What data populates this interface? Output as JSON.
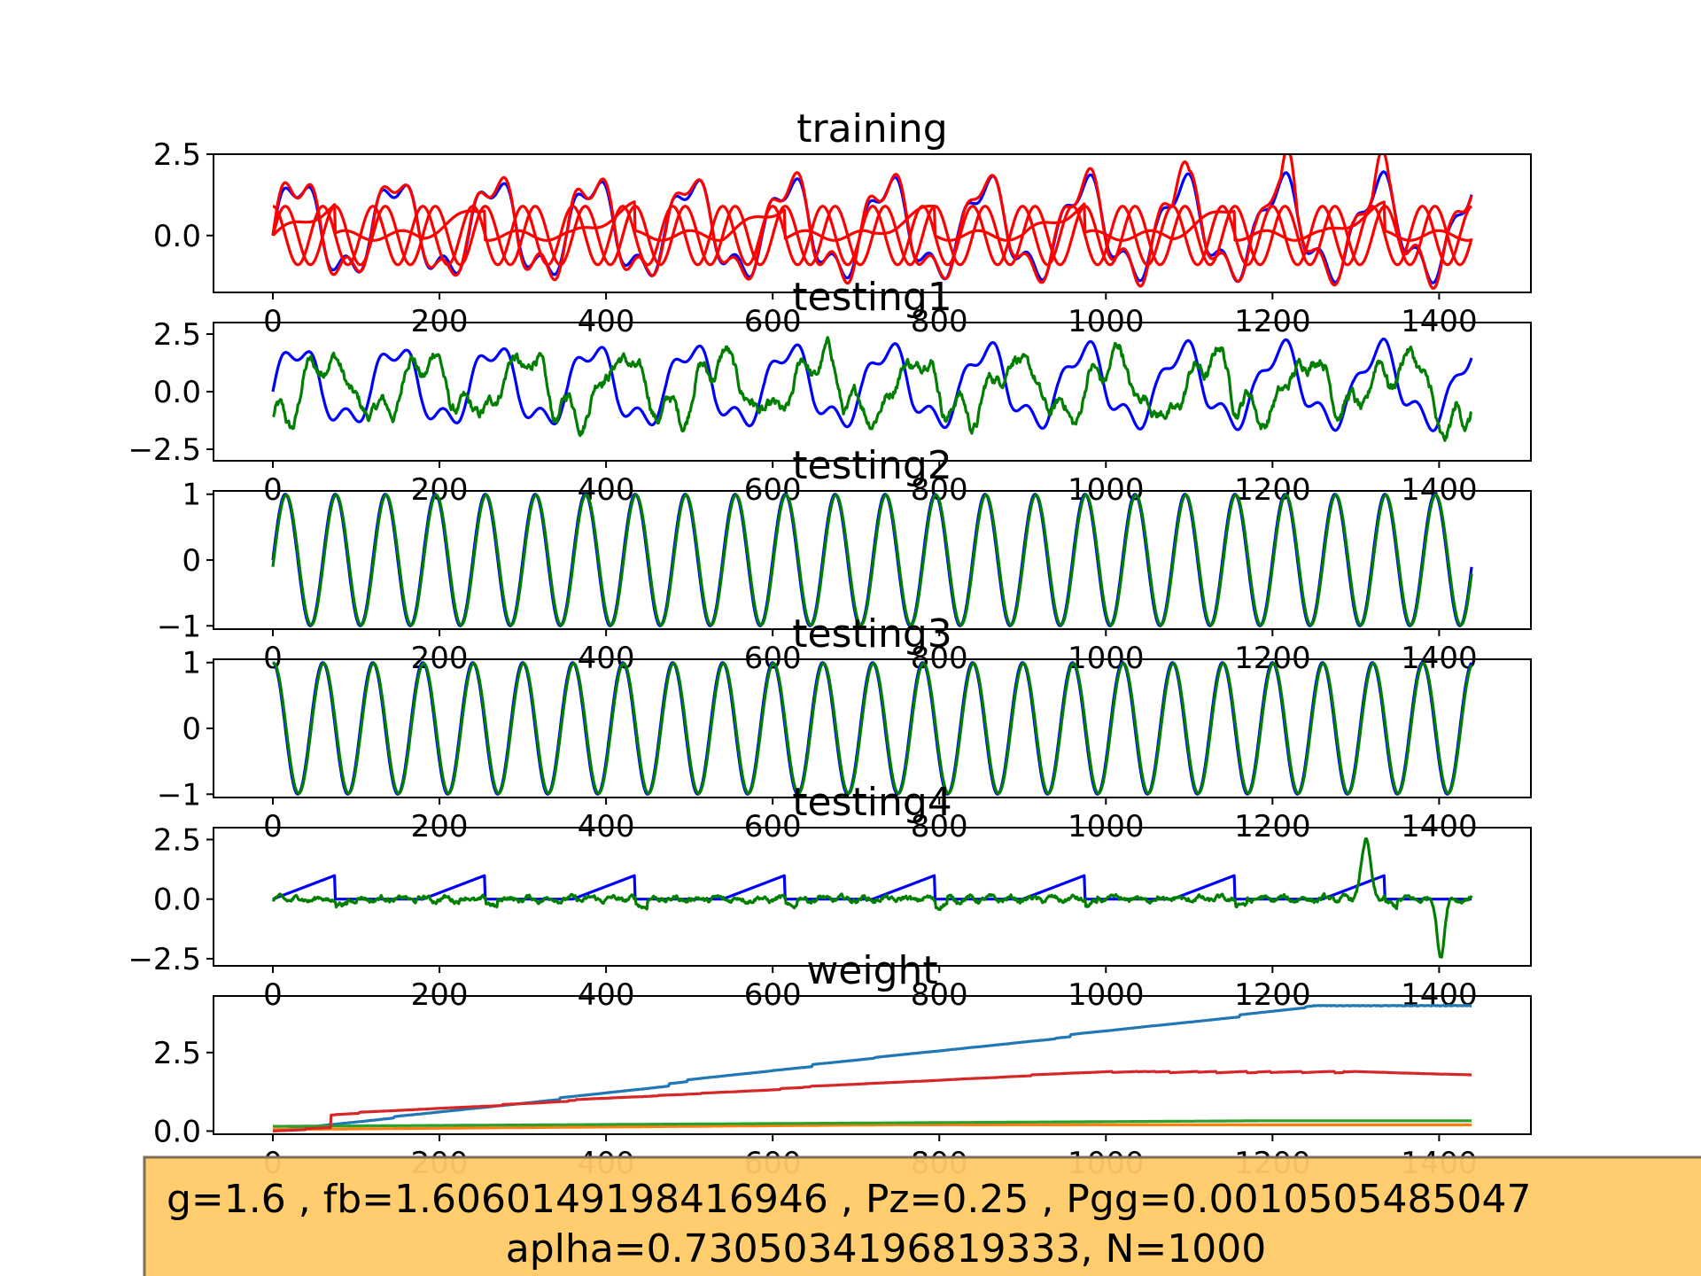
{
  "figure": {
    "caption_line1": "g=1.6 , fb=1.6060149198416946 , Pz=0.25 , Pgg=0.0010505485047",
    "caption_line2": "aplha=0.7305034196819333, N=1000",
    "caption_bg": "#ffc966",
    "caption_border": "#7f6f57"
  },
  "colors": {
    "target": "#0000ff",
    "train_out": "#ff0000",
    "test_out": "#007f00",
    "w1": "#1f77b4",
    "w2": "#ff7f0e",
    "w3": "#2ca02c",
    "w4": "#d62728"
  },
  "chart_data": [
    {
      "type": "line",
      "title": "training",
      "x_range": [
        0,
        1440
      ],
      "ylim": [
        -1.75,
        2.5
      ],
      "yticks": [
        "2.5",
        "0.0"
      ],
      "xticks": [
        "0",
        "200",
        "400",
        "600",
        "800",
        "1000",
        "1200",
        "1400"
      ],
      "series_desc": [
        "target (blue)",
        "outputs (red, 4 traces)"
      ],
      "signal": "sum of sines + sawtooth bursts",
      "y_approx_max": 2.3,
      "y_approx_min": -1.6
    },
    {
      "type": "line",
      "title": "testing1",
      "x_range": [
        0,
        1440
      ],
      "ylim": [
        -3.0,
        3.0
      ],
      "yticks": [
        "2.5",
        "0.0",
        "−2.5"
      ],
      "xticks": [
        "0",
        "200",
        "400",
        "600",
        "800",
        "1000",
        "1200",
        "1400"
      ],
      "series_desc": [
        "target (blue)",
        "output (green)"
      ],
      "y_approx_max": 2.7,
      "y_approx_min": -2.8
    },
    {
      "type": "line",
      "title": "testing2",
      "x_range": [
        0,
        1440
      ],
      "ylim": [
        -1.05,
        1.05
      ],
      "yticks": [
        "1",
        "0",
        "−1"
      ],
      "xticks": [
        "0",
        "200",
        "400",
        "600",
        "800",
        "1000",
        "1200",
        "1400"
      ],
      "series_desc": [
        "target sin (blue)",
        "output (green)"
      ],
      "period": 60
    },
    {
      "type": "line",
      "title": "testing3",
      "x_range": [
        0,
        1440
      ],
      "ylim": [
        -1.05,
        1.05
      ],
      "yticks": [
        "1",
        "0",
        "−1"
      ],
      "xticks": [
        "0",
        "200",
        "400",
        "600",
        "800",
        "1000",
        "1200",
        "1400"
      ],
      "series_desc": [
        "target cos (blue)",
        "output (green)"
      ],
      "period": 60
    },
    {
      "type": "line",
      "title": "testing4",
      "x_range": [
        0,
        1440
      ],
      "ylim": [
        -2.8,
        3.0
      ],
      "yticks": [
        "2.5",
        "0.0",
        "−2.5"
      ],
      "xticks": [
        "0",
        "200",
        "400",
        "600",
        "800",
        "1000",
        "1200",
        "1400"
      ],
      "series_desc": [
        "sawtooth target (blue)",
        "output (green)"
      ],
      "saw_period": 180,
      "saw_ramp": 75,
      "saw_peak": 1.0
    },
    {
      "type": "line",
      "title": "weight",
      "x_range": [
        0,
        1440
      ],
      "ylim": [
        -0.1,
        4.3
      ],
      "yticks": [
        "2.5",
        "0.0"
      ],
      "xticks": [
        "0",
        "200",
        "400",
        "600",
        "800",
        "1000",
        "1200",
        "1400"
      ],
      "series_desc": [
        "w1 (blue) rises to ~4.0",
        "w2 (orange) ~0.2",
        "w3 (green) ~0.3",
        "w4 (red) rises to ~1.7"
      ],
      "w1_end": 4.0,
      "w2_end": 0.2,
      "w3_end": 0.32,
      "w4_end": 1.7
    }
  ]
}
